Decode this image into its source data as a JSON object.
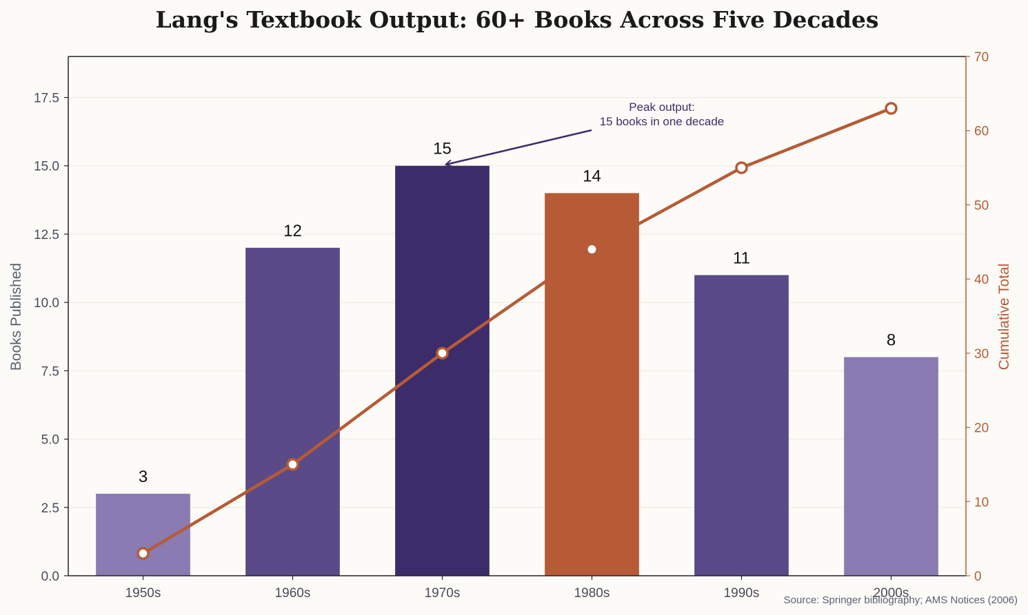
{
  "chart_data": {
    "type": "bar",
    "title": "Lang's Textbook Output: 60+ Books Across Five Decades",
    "categories": [
      "1950s",
      "1960s",
      "1970s",
      "1980s",
      "1990s",
      "2000s"
    ],
    "series": [
      {
        "values": [
          3,
          12,
          15,
          14,
          11,
          8
        ],
        "colors": [
          "#8a7bb2",
          "#5a4a88",
          "#3c2c69",
          "#b65b36",
          "#5a4a88",
          "#8a7bb2"
        ]
      },
      {
        "type": "line",
        "axis": "right",
        "values": [
          3,
          15,
          30,
          44,
          55,
          63
        ],
        "color": "#b65b36"
      }
    ],
    "ylabel": "Books Published",
    "ylabel_right": "Cumulative Total",
    "ylim": [
      0,
      19
    ],
    "ylim_right": [
      0,
      70
    ],
    "yticks": [
      "0.0",
      "2.5",
      "5.0",
      "7.5",
      "10.0",
      "12.5",
      "15.0",
      "17.5"
    ],
    "yticks_right": [
      "0",
      "10",
      "20",
      "30",
      "40",
      "50",
      "60",
      "70"
    ],
    "bar_labels": [
      "3",
      "12",
      "15",
      "14",
      "11",
      "8"
    ],
    "annotation": {
      "line1": "Peak output:",
      "line2": "15 books in one decade",
      "target_category": "1970s",
      "target_value": 15
    },
    "source": "Source: Springer bibliography; AMS Notices (2006)",
    "grid": true
  }
}
